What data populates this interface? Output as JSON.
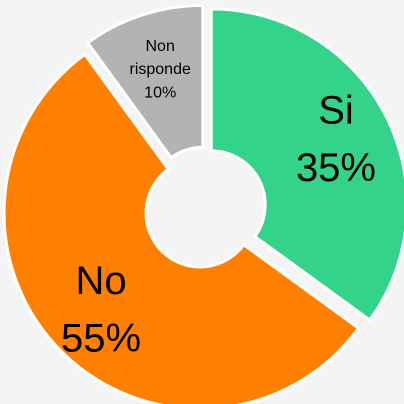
{
  "chart_data": {
    "type": "donut",
    "categories": [
      "Si",
      "No",
      "Non risponde"
    ],
    "values": [
      35,
      55,
      10
    ],
    "value_labels": [
      "35%",
      "55%",
      "10%"
    ],
    "colors": [
      "#33d48a",
      "#ff8000",
      "#b3b3b3"
    ]
  }
}
